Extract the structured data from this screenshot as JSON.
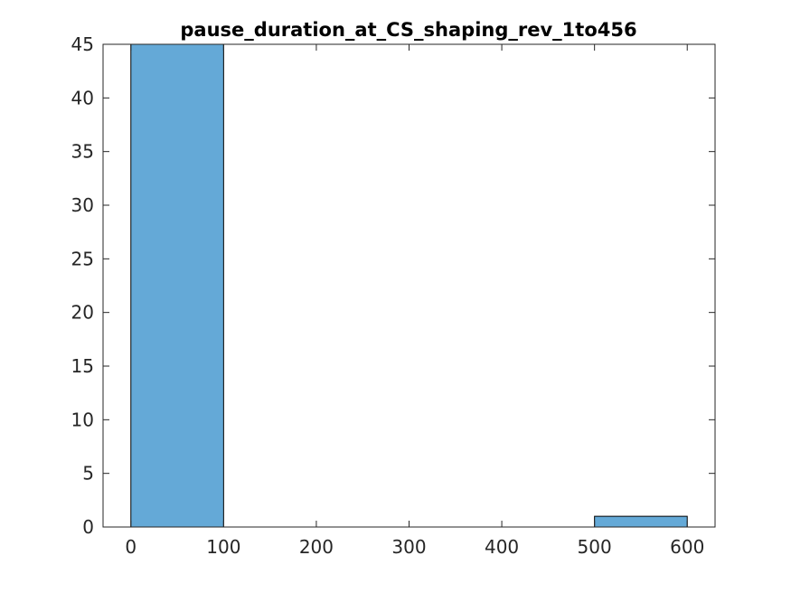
{
  "chart_data": {
    "type": "bar",
    "title": "pause_duration_at_CS_shaping_rev_1to456",
    "xlabel": "",
    "ylabel": "",
    "xlim": [
      -30,
      630
    ],
    "ylim": [
      0,
      45
    ],
    "xticks": [
      0,
      100,
      200,
      300,
      400,
      500,
      600
    ],
    "yticks": [
      0,
      5,
      10,
      15,
      20,
      25,
      30,
      35,
      40,
      45
    ],
    "bins": [
      {
        "start": 0,
        "end": 100,
        "count": 45
      },
      {
        "start": 100,
        "end": 200,
        "count": 0
      },
      {
        "start": 200,
        "end": 300,
        "count": 0
      },
      {
        "start": 300,
        "end": 400,
        "count": 0
      },
      {
        "start": 400,
        "end": 500,
        "count": 0
      },
      {
        "start": 500,
        "end": 600,
        "count": 1
      }
    ],
    "grid": false,
    "colors": {
      "bar_fill": "#64a9d7",
      "bar_edge": "#000000",
      "axis": "#262626"
    }
  }
}
